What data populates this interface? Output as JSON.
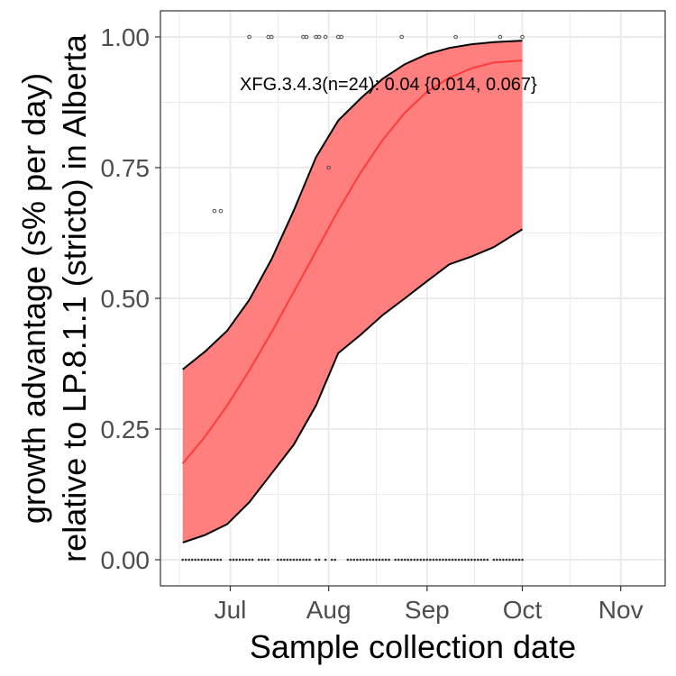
{
  "chart_data": {
    "type": "area",
    "title": "",
    "xlabel": "Sample collection date",
    "ylabel_line1": "growth advantage (s% per day)",
    "ylabel_line2": "relative to LP.8.1.1 (stricto) in Alberta",
    "x_range": [
      "2025-06-09",
      "2025-11-15"
    ],
    "ylim": [
      -0.05,
      1.05
    ],
    "x_ticks": [
      {
        "date": "2025-07-01",
        "label": "Jul"
      },
      {
        "date": "2025-08-01",
        "label": "Aug"
      },
      {
        "date": "2025-09-01",
        "label": "Sep"
      },
      {
        "date": "2025-10-01",
        "label": "Oct"
      },
      {
        "date": "2025-11-01",
        "label": "Nov"
      }
    ],
    "x_minor_ticks": [
      "2025-06-15",
      "2025-07-16",
      "2025-08-16",
      "2025-09-16",
      "2025-10-16"
    ],
    "y_ticks": [
      {
        "value": 0,
        "label": "0.00"
      },
      {
        "value": 0.25,
        "label": "0.25"
      },
      {
        "value": 0.5,
        "label": "0.50"
      },
      {
        "value": 0.75,
        "label": "0.75"
      },
      {
        "value": 1,
        "label": "1.00"
      }
    ],
    "y_minor_ticks": [
      0.125,
      0.375,
      0.625,
      0.875
    ],
    "grid": true,
    "annotation": "XFG.3.4.3(n=24): 0.04 {0.014, 0.067}",
    "annotation_anchor": {
      "date": "2025-07-04",
      "value": 0.91
    },
    "colors": {
      "fit_line": "#ff3b3b",
      "ribbon_fill": "#ff7f7f",
      "ribbon_edge": "#000000",
      "points": "#4d4d4d",
      "grid": "#ebebeb"
    },
    "fit": [
      {
        "date": "2025-06-16",
        "value": 0.184
      },
      {
        "date": "2025-06-23",
        "value": 0.235
      },
      {
        "date": "2025-06-30",
        "value": 0.295
      },
      {
        "date": "2025-07-07",
        "value": 0.362
      },
      {
        "date": "2025-07-14",
        "value": 0.435
      },
      {
        "date": "2025-07-21",
        "value": 0.512
      },
      {
        "date": "2025-07-28",
        "value": 0.59
      },
      {
        "date": "2025-08-04",
        "value": 0.668
      },
      {
        "date": "2025-08-11",
        "value": 0.74
      },
      {
        "date": "2025-08-18",
        "value": 0.803
      },
      {
        "date": "2025-08-25",
        "value": 0.855
      },
      {
        "date": "2025-09-01",
        "value": 0.895
      },
      {
        "date": "2025-09-08",
        "value": 0.922
      },
      {
        "date": "2025-09-15",
        "value": 0.94
      },
      {
        "date": "2025-09-22",
        "value": 0.951
      },
      {
        "date": "2025-10-01",
        "value": 0.955
      }
    ],
    "ci_upper": [
      {
        "date": "2025-06-16",
        "value": 0.364
      },
      {
        "date": "2025-06-23",
        "value": 0.398
      },
      {
        "date": "2025-06-30",
        "value": 0.438
      },
      {
        "date": "2025-07-07",
        "value": 0.497
      },
      {
        "date": "2025-07-14",
        "value": 0.575
      },
      {
        "date": "2025-07-21",
        "value": 0.668
      },
      {
        "date": "2025-07-28",
        "value": 0.77
      },
      {
        "date": "2025-08-04",
        "value": 0.84
      },
      {
        "date": "2025-08-11",
        "value": 0.882
      },
      {
        "date": "2025-08-18",
        "value": 0.92
      },
      {
        "date": "2025-08-25",
        "value": 0.948
      },
      {
        "date": "2025-09-01",
        "value": 0.967
      },
      {
        "date": "2025-09-08",
        "value": 0.979
      },
      {
        "date": "2025-09-15",
        "value": 0.986
      },
      {
        "date": "2025-09-22",
        "value": 0.99
      },
      {
        "date": "2025-10-01",
        "value": 0.993
      }
    ],
    "ci_lower": [
      {
        "date": "2025-06-16",
        "value": 0.033
      },
      {
        "date": "2025-06-23",
        "value": 0.047
      },
      {
        "date": "2025-06-30",
        "value": 0.068
      },
      {
        "date": "2025-07-07",
        "value": 0.11
      },
      {
        "date": "2025-07-14",
        "value": 0.165
      },
      {
        "date": "2025-07-21",
        "value": 0.22
      },
      {
        "date": "2025-07-28",
        "value": 0.295
      },
      {
        "date": "2025-08-04",
        "value": 0.395
      },
      {
        "date": "2025-08-11",
        "value": 0.43
      },
      {
        "date": "2025-08-18",
        "value": 0.468
      },
      {
        "date": "2025-08-25",
        "value": 0.5
      },
      {
        "date": "2025-09-01",
        "value": 0.533
      },
      {
        "date": "2025-09-08",
        "value": 0.565
      },
      {
        "date": "2025-09-15",
        "value": 0.58
      },
      {
        "date": "2025-09-22",
        "value": 0.598
      },
      {
        "date": "2025-10-01",
        "value": 0.632
      }
    ],
    "observations": [
      {
        "date": "2025-06-26",
        "value": 0.667
      },
      {
        "date": "2025-06-28",
        "value": 0.667
      },
      {
        "date": "2025-07-07",
        "value": 1.0
      },
      {
        "date": "2025-07-13",
        "value": 1.0
      },
      {
        "date": "2025-07-14",
        "value": 1.0
      },
      {
        "date": "2025-07-24",
        "value": 1.0
      },
      {
        "date": "2025-07-25",
        "value": 1.0
      },
      {
        "date": "2025-07-28",
        "value": 1.0
      },
      {
        "date": "2025-07-29",
        "value": 1.0
      },
      {
        "date": "2025-07-31",
        "value": 1.0
      },
      {
        "date": "2025-08-01",
        "value": 0.75
      },
      {
        "date": "2025-08-04",
        "value": 1.0
      },
      {
        "date": "2025-08-05",
        "value": 1.0
      },
      {
        "date": "2025-08-24",
        "value": 1.0
      },
      {
        "date": "2025-09-10",
        "value": 1.0
      },
      {
        "date": "2025-09-24",
        "value": 1.0
      },
      {
        "date": "2025-10-01",
        "value": 1.0
      }
    ],
    "zero_observation_dates": [
      "2025-06-16",
      "2025-06-17",
      "2025-06-18",
      "2025-06-19",
      "2025-06-20",
      "2025-06-21",
      "2025-06-22",
      "2025-06-23",
      "2025-06-24",
      "2025-06-25",
      "2025-06-26",
      "2025-06-27",
      "2025-06-28",
      "2025-07-01",
      "2025-07-02",
      "2025-07-03",
      "2025-07-04",
      "2025-07-05",
      "2025-07-06",
      "2025-07-07",
      "2025-07-08",
      "2025-07-10",
      "2025-07-11",
      "2025-07-12",
      "2025-07-13",
      "2025-07-16",
      "2025-07-17",
      "2025-07-18",
      "2025-07-19",
      "2025-07-20",
      "2025-07-21",
      "2025-07-22",
      "2025-07-23",
      "2025-07-24",
      "2025-07-25",
      "2025-07-26",
      "2025-07-28",
      "2025-07-29",
      "2025-07-31",
      "2025-08-02",
      "2025-08-03",
      "2025-08-07",
      "2025-08-08",
      "2025-08-09",
      "2025-08-10",
      "2025-08-11",
      "2025-08-12",
      "2025-08-13",
      "2025-08-14",
      "2025-08-15",
      "2025-08-16",
      "2025-08-17",
      "2025-08-18",
      "2025-08-19",
      "2025-08-20",
      "2025-08-22",
      "2025-08-23",
      "2025-08-24",
      "2025-08-25",
      "2025-08-26",
      "2025-08-27",
      "2025-08-28",
      "2025-08-29",
      "2025-08-30",
      "2025-08-31",
      "2025-09-01",
      "2025-09-02",
      "2025-09-03",
      "2025-09-04",
      "2025-09-05",
      "2025-09-06",
      "2025-09-07",
      "2025-09-08",
      "2025-09-09",
      "2025-09-10",
      "2025-09-11",
      "2025-09-12",
      "2025-09-13",
      "2025-09-14",
      "2025-09-15",
      "2025-09-16",
      "2025-09-17",
      "2025-09-18",
      "2025-09-19",
      "2025-09-20",
      "2025-09-22",
      "2025-09-23",
      "2025-09-24",
      "2025-09-25",
      "2025-09-26",
      "2025-09-27",
      "2025-09-28",
      "2025-09-29",
      "2025-09-30",
      "2025-10-01"
    ]
  }
}
